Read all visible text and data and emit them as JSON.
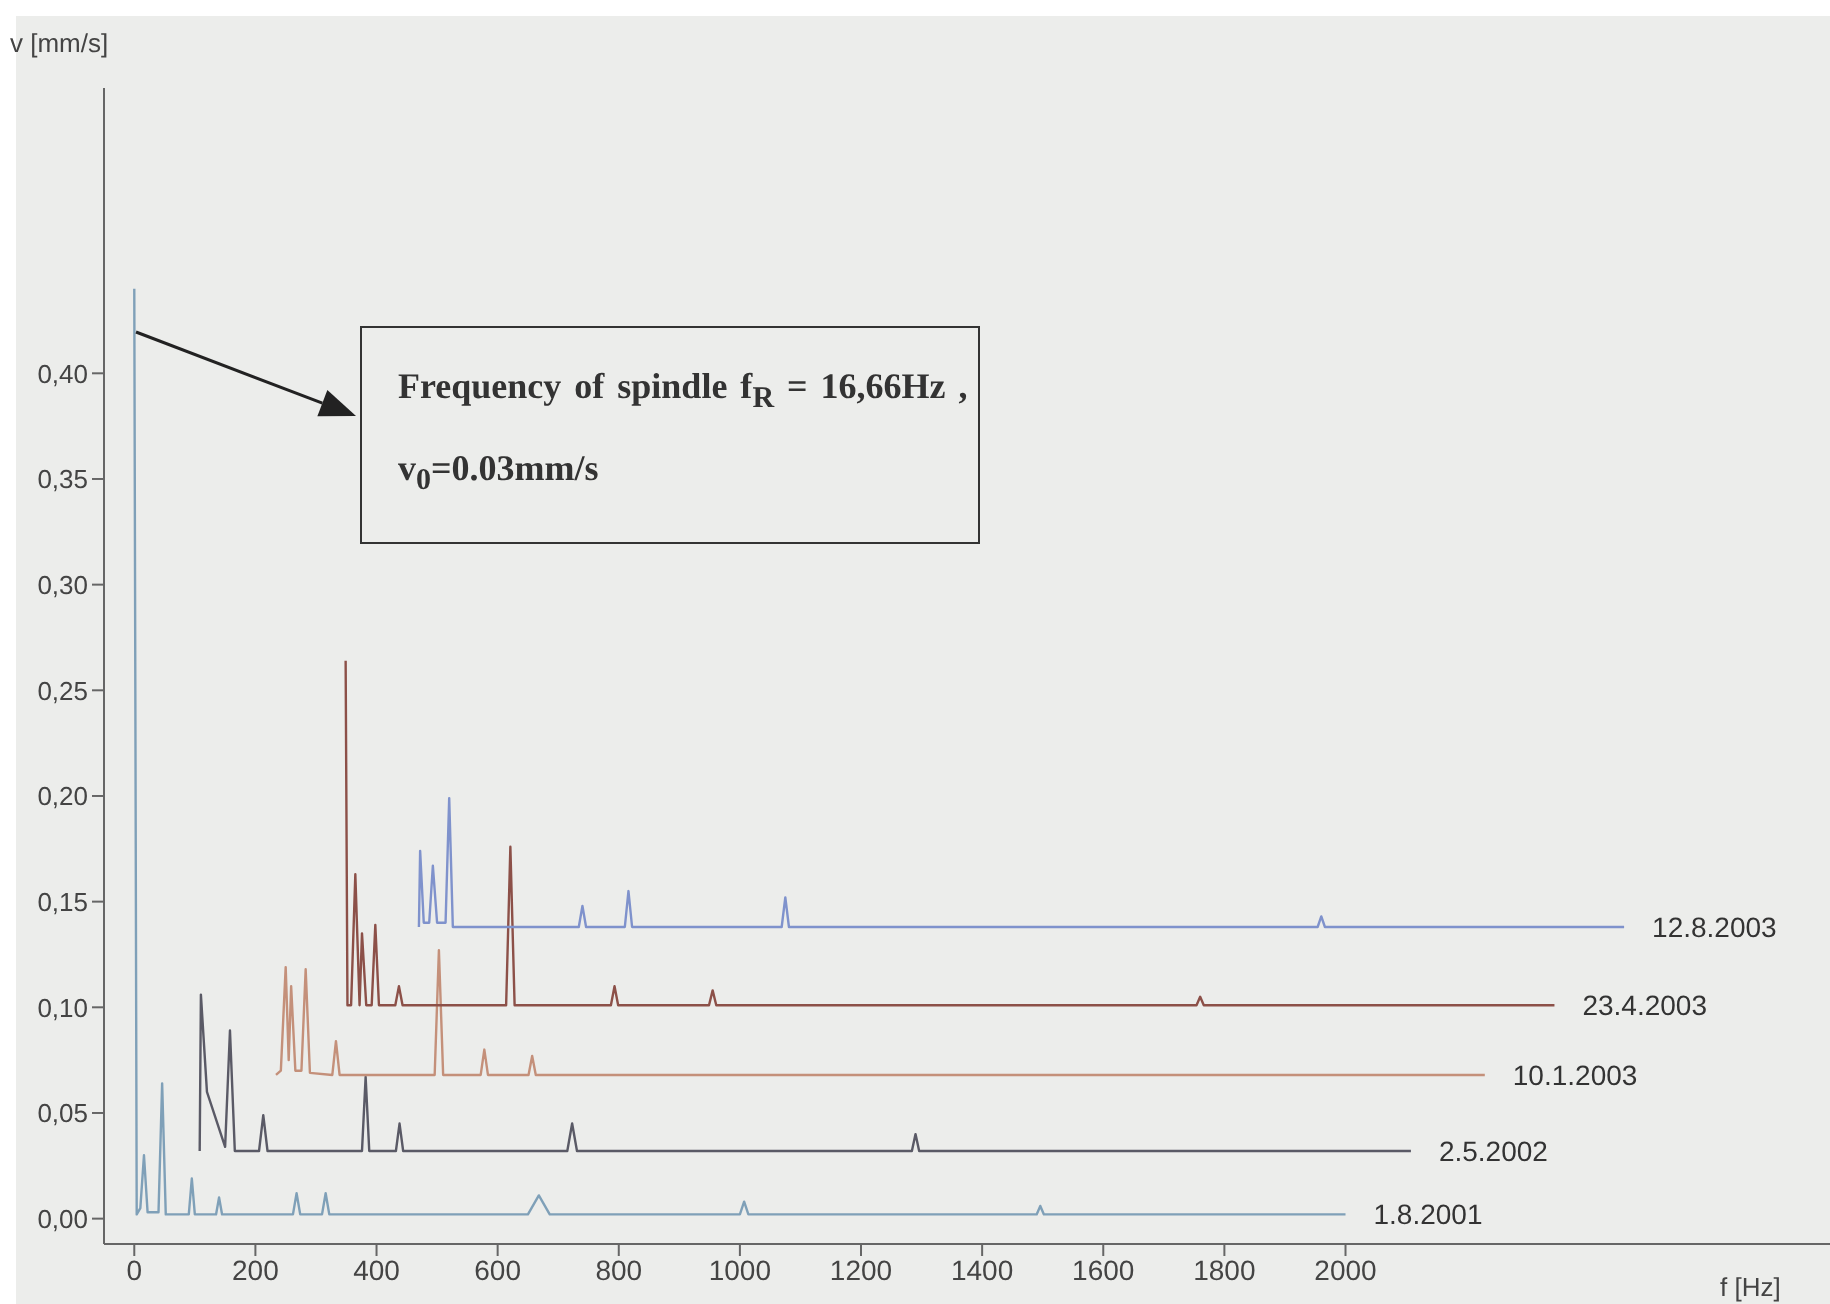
{
  "chart_data": {
    "type": "line",
    "xlabel": "f [Hz]",
    "ylabel": "v [mm/s]",
    "annotations": [
      "Frequency of spindle f$_{R}$ = 16,66Hz ,",
      "v$_{0}$=0.03mm/s"
    ],
    "xlim": [
      -50,
      2800
    ],
    "ylim": [
      -0.012,
      0.535
    ],
    "xticks": [
      0,
      200,
      400,
      600,
      800,
      1000,
      1200,
      1400,
      1600,
      1800,
      2000
    ],
    "yticks": [
      {
        "value": 0,
        "label": "0,00"
      },
      {
        "value": 0.05,
        "label": "0,05"
      },
      {
        "value": 0.1,
        "label": "0,10"
      },
      {
        "value": 0.15,
        "label": "0,15"
      },
      {
        "value": 0.2,
        "label": "0,20"
      },
      {
        "value": 0.25,
        "label": "0,25"
      },
      {
        "value": 0.3,
        "label": "0,30"
      },
      {
        "value": 0.35,
        "label": "0,35"
      },
      {
        "value": 0.4,
        "label": "0,40"
      }
    ],
    "series": [
      {
        "name": "1.8.2001",
        "color": "#7fa0b8",
        "x": [
          0,
          4,
          10,
          16,
          22,
          40,
          46,
          52,
          90,
          95,
          100,
          135,
          140,
          145,
          262,
          268,
          274,
          310,
          316,
          322,
          650,
          668,
          686,
          1000,
          1007,
          1014,
          1490,
          1496,
          1502,
          2000
        ],
        "values": [
          0.44,
          0.002,
          0.005,
          0.03,
          0.003,
          0.003,
          0.064,
          0.002,
          0.002,
          0.019,
          0.002,
          0.002,
          0.01,
          0.002,
          0.002,
          0.012,
          0.002,
          0.002,
          0.012,
          0.002,
          0.002,
          0.011,
          0.002,
          0.002,
          0.008,
          0.002,
          0.002,
          0.006,
          0.002,
          0.002
        ]
      },
      {
        "name": "2.5.2002",
        "color": "#5a5a66",
        "x": [
          108,
          110,
          120,
          150,
          158,
          166,
          206,
          213,
          220,
          376,
          382,
          388,
          432,
          438,
          444,
          715,
          723,
          731,
          1284,
          1290,
          1296,
          2108
        ],
        "values": [
          0.032,
          0.106,
          0.06,
          0.034,
          0.089,
          0.032,
          0.032,
          0.049,
          0.032,
          0.032,
          0.067,
          0.032,
          0.032,
          0.045,
          0.032,
          0.032,
          0.045,
          0.032,
          0.032,
          0.04,
          0.032,
          0.032
        ]
      },
      {
        "name": "10.1.2003",
        "color": "#c4907a",
        "x": [
          234,
          242,
          250,
          255,
          259,
          266,
          276,
          283,
          290,
          327,
          333,
          339,
          496,
          503,
          510,
          572,
          578,
          584,
          651,
          657,
          663,
          2230
        ],
        "values": [
          0.068,
          0.07,
          0.119,
          0.075,
          0.11,
          0.07,
          0.07,
          0.118,
          0.069,
          0.068,
          0.084,
          0.068,
          0.068,
          0.127,
          0.068,
          0.068,
          0.08,
          0.068,
          0.068,
          0.077,
          0.068,
          0.068
        ]
      },
      {
        "name": "23.4.2003",
        "color": "#8c5048",
        "x": [
          349,
          352,
          358,
          365,
          372,
          376,
          383,
          392,
          398,
          404,
          431,
          437,
          443,
          614,
          621,
          628,
          787,
          793,
          799,
          949,
          955,
          961,
          1754,
          1760,
          1766,
          2345
        ],
        "values": [
          0.264,
          0.101,
          0.101,
          0.163,
          0.101,
          0.135,
          0.101,
          0.101,
          0.139,
          0.101,
          0.101,
          0.11,
          0.101,
          0.101,
          0.176,
          0.101,
          0.101,
          0.11,
          0.101,
          0.101,
          0.108,
          0.101,
          0.101,
          0.105,
          0.101,
          0.101
        ]
      },
      {
        "name": "12.8.2003",
        "color": "#7f92cc",
        "x": [
          470,
          472,
          478,
          487,
          493,
          500,
          514,
          520,
          526,
          734,
          740,
          746,
          810,
          816,
          822,
          1069,
          1075,
          1081,
          1954,
          1960,
          1966,
          2460
        ],
        "values": [
          0.138,
          0.174,
          0.14,
          0.14,
          0.167,
          0.14,
          0.14,
          0.199,
          0.138,
          0.138,
          0.148,
          0.138,
          0.138,
          0.155,
          0.138,
          0.138,
          0.152,
          0.138,
          0.138,
          0.143,
          0.138,
          0.138
        ]
      }
    ]
  }
}
